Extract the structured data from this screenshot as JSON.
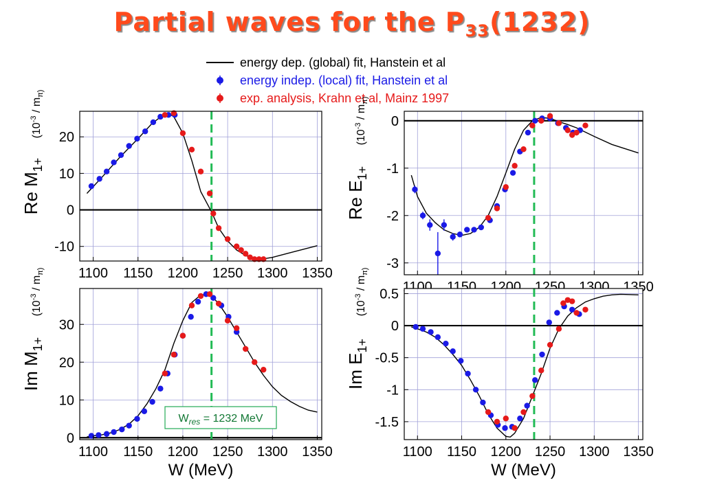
{
  "title": "Partial waves for the P",
  "title_sub": "33",
  "title_suffix": "(1232)",
  "legend": [
    {
      "label": "energy dep. (global) fit, Hanstein et al",
      "marker": "line",
      "color": "#000000"
    },
    {
      "label": "energy indep. (local) fit, Hanstein et al",
      "marker": "point",
      "color": "#1a1ae6"
    },
    {
      "label": "exp. analysis, Krahn et al, Mainz 1997",
      "marker": "point",
      "color": "#e61a1a"
    }
  ],
  "colors": {
    "blue": "#1a1ae6",
    "red": "#e61a1a",
    "grid": "#a0a0d8",
    "resonance": "#22bb55",
    "zero": "#000000"
  },
  "resonance": {
    "x": 1232,
    "label_prefix": "W",
    "label_sub": "res",
    "label_suffix": " = 1232 MeV"
  },
  "chart_data": [
    {
      "type": "scatter",
      "ylabel": "Re M",
      "ylabel_sub": "1+",
      "units": "(10",
      "units_sup": "-3",
      "units_tail": " / m",
      "units_sub": "π)",
      "xlim": [
        1085,
        1355
      ],
      "ylim": [
        -14,
        27
      ],
      "xticks": [
        1100,
        1150,
        1200,
        1250,
        1300,
        1350
      ],
      "yticks": [
        -10,
        0,
        10,
        20
      ],
      "ytick_labels": [
        "-10",
        "0",
        "10",
        "20"
      ],
      "xtick_labels": true,
      "xlabel": "",
      "curve": {
        "x": [
          1093,
          1110,
          1130,
          1150,
          1165,
          1178,
          1185,
          1190,
          1200,
          1210,
          1220,
          1232,
          1240,
          1250,
          1260,
          1270,
          1280,
          1290,
          1300,
          1320,
          1350
        ],
        "y": [
          4.5,
          9,
          14.5,
          19.5,
          23.5,
          26,
          26.3,
          25.5,
          21,
          13.5,
          5,
          -0.5,
          -5,
          -8.5,
          -11,
          -12.5,
          -13.3,
          -13.4,
          -13,
          -11.7,
          -9.8
        ]
      },
      "series": [
        {
          "name": "energy indep. (local) fit, Hanstein et al",
          "color": "blue",
          "x": [
            1098,
            1107,
            1115,
            1123,
            1131,
            1140,
            1149,
            1158,
            1167,
            1175,
            1184,
            1191
          ],
          "y": [
            6.5,
            8.5,
            10.5,
            13,
            15,
            17.5,
            19.5,
            21.5,
            24,
            25.5,
            26,
            26
          ]
        },
        {
          "name": "exp. analysis, Krahn et al, Mainz 1997",
          "color": "red",
          "x": [
            1180,
            1190,
            1200,
            1210,
            1220,
            1230,
            1234,
            1240,
            1250,
            1260,
            1265,
            1270,
            1275,
            1280,
            1285,
            1290
          ],
          "y": [
            26,
            26.5,
            21,
            16.5,
            10.5,
            4.5,
            -1,
            -5,
            -8,
            -10,
            -11,
            -12,
            -13,
            -13.5,
            -13.5,
            -13.5
          ]
        }
      ]
    },
    {
      "type": "scatter",
      "ylabel": "Re E",
      "ylabel_sub": "1+",
      "units": "(10",
      "units_sup": "-3",
      "units_tail": " / m",
      "units_sub": "π)",
      "xlim": [
        1085,
        1355
      ],
      "ylim": [
        -3.25,
        0.2
      ],
      "xticks": [
        1100,
        1150,
        1200,
        1250,
        1300,
        1350
      ],
      "yticks": [
        -3,
        -2,
        -1,
        0
      ],
      "ytick_labels": [
        "-3",
        "-2",
        "-1",
        "0"
      ],
      "xtick_labels": true,
      "xlabel": "",
      "curve": {
        "x": [
          1093,
          1100,
          1110,
          1120,
          1130,
          1140,
          1150,
          1160,
          1170,
          1180,
          1190,
          1200,
          1210,
          1220,
          1230,
          1240,
          1250,
          1260,
          1270,
          1280,
          1300,
          1320,
          1350
        ],
        "y": [
          -1.15,
          -1.6,
          -1.95,
          -2.15,
          -2.3,
          -2.38,
          -2.42,
          -2.38,
          -2.25,
          -2.0,
          -1.6,
          -1.1,
          -0.6,
          -0.2,
          0.0,
          0.07,
          0.05,
          -0.02,
          -0.08,
          -0.15,
          -0.33,
          -0.5,
          -0.68
        ]
      },
      "series": [
        {
          "name": "energy indep. (local) fit, Hanstein et al",
          "color": "blue",
          "x": [
            1097,
            1106,
            1114,
            1123,
            1130,
            1140,
            1148,
            1156,
            1164,
            1172,
            1182,
            1190,
            1199,
            1208,
            1216,
            1225,
            1233,
            1241,
            1250,
            1259,
            1268,
            1276,
            1284
          ],
          "y": [
            -1.45,
            -2.0,
            -2.2,
            -2.8,
            -2.2,
            -2.45,
            -2.4,
            -2.3,
            -2.3,
            -2.25,
            -2.1,
            -1.8,
            -1.45,
            -1.1,
            -0.65,
            -0.25,
            0.0,
            0.05,
            0.05,
            -0.05,
            -0.15,
            -0.25,
            -0.2
          ],
          "errors": [
            0.08,
            0.08,
            0.12,
            0.45,
            0.12,
            0.08,
            0.06,
            0.05,
            0.05,
            0.05,
            0.05,
            0.05,
            0.05,
            0.05,
            0.05,
            0.05,
            0.05,
            0.05,
            0.05,
            0.05,
            0.05,
            0.05,
            0.05
          ]
        },
        {
          "name": "exp. analysis, Krahn et al, Mainz 1997",
          "color": "red",
          "x": [
            1180,
            1190,
            1200,
            1210,
            1220,
            1230,
            1240,
            1250,
            1260,
            1270,
            1275,
            1280,
            1290
          ],
          "y": [
            -2.05,
            -1.85,
            -1.4,
            -0.95,
            -0.6,
            -0.1,
            0.0,
            0.1,
            -0.05,
            -0.2,
            -0.3,
            -0.25,
            -0.1
          ],
          "errors": [
            0.06,
            0.06,
            0.06,
            0.06,
            0.06,
            0.06,
            0.06,
            0.06,
            0.06,
            0.06,
            0.06,
            0.06,
            0.06
          ]
        }
      ]
    },
    {
      "type": "scatter",
      "ylabel": "Im M",
      "ylabel_sub": "1+",
      "units": "(10",
      "units_sup": "-3",
      "units_tail": " / m",
      "units_sub": "π)",
      "xlim": [
        1085,
        1355
      ],
      "ylim": [
        -0.5,
        39.5
      ],
      "xticks": [
        1100,
        1150,
        1200,
        1250,
        1300,
        1350
      ],
      "yticks": [
        0,
        10,
        20,
        30
      ],
      "ytick_labels": [
        "0",
        "10",
        "20",
        "30"
      ],
      "xtick_labels": true,
      "xlabel": "W (MeV)",
      "curve": {
        "x": [
          1093,
          1100,
          1110,
          1120,
          1130,
          1140,
          1150,
          1160,
          1170,
          1180,
          1190,
          1200,
          1210,
          1220,
          1227,
          1232,
          1240,
          1250,
          1260,
          1270,
          1280,
          1290,
          1300,
          1310,
          1320,
          1330,
          1340,
          1350
        ],
        "y": [
          0.2,
          0.5,
          0.8,
          1.3,
          2.2,
          3.6,
          5.8,
          9,
          13,
          18,
          25,
          31,
          35.8,
          37.8,
          38,
          37.5,
          35.5,
          32,
          28,
          24,
          20,
          16.5,
          13.5,
          11.2,
          9.6,
          8.3,
          7.3,
          6.8
        ]
      },
      "series": [
        {
          "name": "energy indep. (local) fit, Hanstein et al",
          "color": "blue",
          "x": [
            1098,
            1106,
            1115,
            1123,
            1132,
            1140,
            1149,
            1157,
            1166,
            1175,
            1183,
            1191,
            1200,
            1209,
            1217,
            1226,
            1234,
            1243,
            1251,
            1260
          ],
          "y": [
            0.5,
            0.7,
            1.0,
            1.5,
            2.2,
            3.2,
            5.0,
            7.0,
            9.5,
            13,
            17,
            22,
            27,
            32,
            36,
            38,
            37,
            35,
            32,
            28
          ]
        },
        {
          "name": "exp. analysis, Krahn et al, Mainz 1997",
          "color": "red",
          "x": [
            1180,
            1190,
            1200,
            1210,
            1220,
            1230,
            1240,
            1250,
            1260,
            1270,
            1280,
            1290
          ],
          "y": [
            17,
            22,
            27,
            35,
            37.5,
            38,
            35.5,
            31,
            29,
            23.5,
            20,
            18
          ]
        }
      ]
    },
    {
      "type": "scatter",
      "ylabel": "Im E",
      "ylabel_sub": "1+",
      "units": "(10",
      "units_sup": "-3",
      "units_tail": " / m",
      "units_sub": "π)",
      "xlim": [
        1085,
        1355
      ],
      "ylim": [
        -1.78,
        0.58
      ],
      "xticks": [
        1100,
        1150,
        1200,
        1250,
        1300,
        1350
      ],
      "yticks": [
        -1.5,
        -1,
        -0.5,
        0,
        0.5
      ],
      "ytick_labels": [
        "-1.5",
        "-1",
        "-0.5",
        "0",
        "0.5"
      ],
      "xtick_labels": true,
      "xlabel": "W (MeV)",
      "curve": {
        "x": [
          1093,
          1100,
          1110,
          1120,
          1130,
          1140,
          1150,
          1160,
          1170,
          1180,
          1190,
          1200,
          1205,
          1210,
          1220,
          1230,
          1240,
          1250,
          1260,
          1270,
          1280,
          1290,
          1300,
          1310,
          1320,
          1330,
          1350
        ],
        "y": [
          -0.02,
          -0.05,
          -0.1,
          -0.18,
          -0.3,
          -0.45,
          -0.62,
          -0.85,
          -1.1,
          -1.38,
          -1.6,
          -1.73,
          -1.74,
          -1.68,
          -1.45,
          -1.1,
          -0.75,
          -0.35,
          -0.05,
          0.15,
          0.28,
          0.37,
          0.42,
          0.46,
          0.48,
          0.49,
          0.48
        ]
      },
      "series": [
        {
          "name": "energy indep. (local) fit, Hanstein et al",
          "color": "blue",
          "x": [
            1098,
            1106,
            1115,
            1123,
            1132,
            1140,
            1149,
            1157,
            1166,
            1174,
            1183,
            1191,
            1199,
            1207,
            1216,
            1224,
            1233,
            1241,
            1249,
            1258,
            1266,
            1275,
            1283
          ],
          "y": [
            -0.02,
            -0.05,
            -0.1,
            -0.18,
            -0.28,
            -0.4,
            -0.55,
            -0.75,
            -1.0,
            -1.2,
            -1.4,
            -1.55,
            -1.6,
            -1.58,
            -1.45,
            -1.25,
            -0.85,
            -0.45,
            0.05,
            0.2,
            0.3,
            0.25,
            0.18
          ]
        },
        {
          "name": "exp. analysis, Krahn et al, Mainz 1997",
          "color": "red",
          "x": [
            1180,
            1190,
            1200,
            1210,
            1220,
            1230,
            1240,
            1250,
            1260,
            1265,
            1270,
            1275,
            1280,
            1290
          ],
          "y": [
            -1.35,
            -1.5,
            -1.45,
            -1.6,
            -1.35,
            -1.1,
            -0.7,
            -0.3,
            -0.05,
            0.35,
            0.4,
            0.38,
            0.2,
            0.25
          ]
        }
      ]
    }
  ]
}
